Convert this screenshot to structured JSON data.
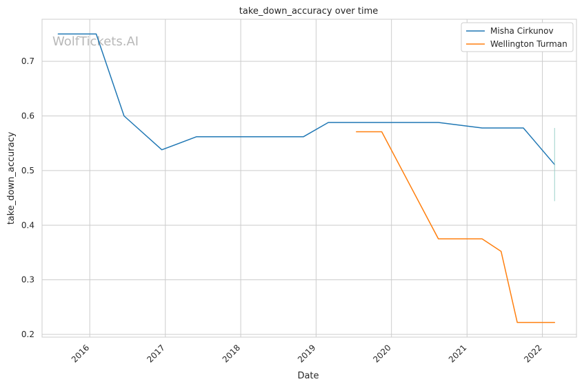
{
  "chart_data": {
    "type": "line",
    "title": "take_down_accuracy over time",
    "xlabel": "Date",
    "ylabel": "take_down_accuracy",
    "watermark": "WolfTickets.AI",
    "x_ticks": [
      "2016",
      "2017",
      "2018",
      "2019",
      "2020",
      "2021",
      "2022"
    ],
    "y_ticks": [
      "0.2",
      "0.3",
      "0.4",
      "0.5",
      "0.6",
      "0.7"
    ],
    "xlim": [
      "2015-05-15",
      "2022-06-15"
    ],
    "ylim": [
      0.195,
      0.777
    ],
    "grid": true,
    "legend_position": "top-right",
    "series": [
      {
        "name": "Misha Cirkunov",
        "color": "#1f77b4",
        "points": [
          [
            "2015-08-01",
            0.75
          ],
          [
            "2016-02-01",
            0.75
          ],
          [
            "2016-06-15",
            0.6
          ],
          [
            "2016-12-15",
            0.538
          ],
          [
            "2017-06-01",
            0.562
          ],
          [
            "2018-11-01",
            0.562
          ],
          [
            "2019-03-01",
            0.588
          ],
          [
            "2020-08-15",
            0.588
          ],
          [
            "2021-03-15",
            0.578
          ],
          [
            "2021-10-01",
            0.578
          ],
          [
            "2022-03-01",
            0.511
          ]
        ]
      },
      {
        "name": "Wellington Turman",
        "color": "#ff7f0e",
        "points": [
          [
            "2019-07-15",
            0.571
          ],
          [
            "2019-11-15",
            0.571
          ],
          [
            "2020-08-15",
            0.375
          ],
          [
            "2021-03-15",
            0.375
          ],
          [
            "2021-06-15",
            0.352
          ],
          [
            "2021-09-01",
            0.222
          ],
          [
            "2022-03-01",
            0.222
          ]
        ]
      }
    ],
    "error_bar": {
      "x": "2022-03-01",
      "y_low": 0.444,
      "y_high": 0.578,
      "color": "#9bd0c9"
    }
  }
}
